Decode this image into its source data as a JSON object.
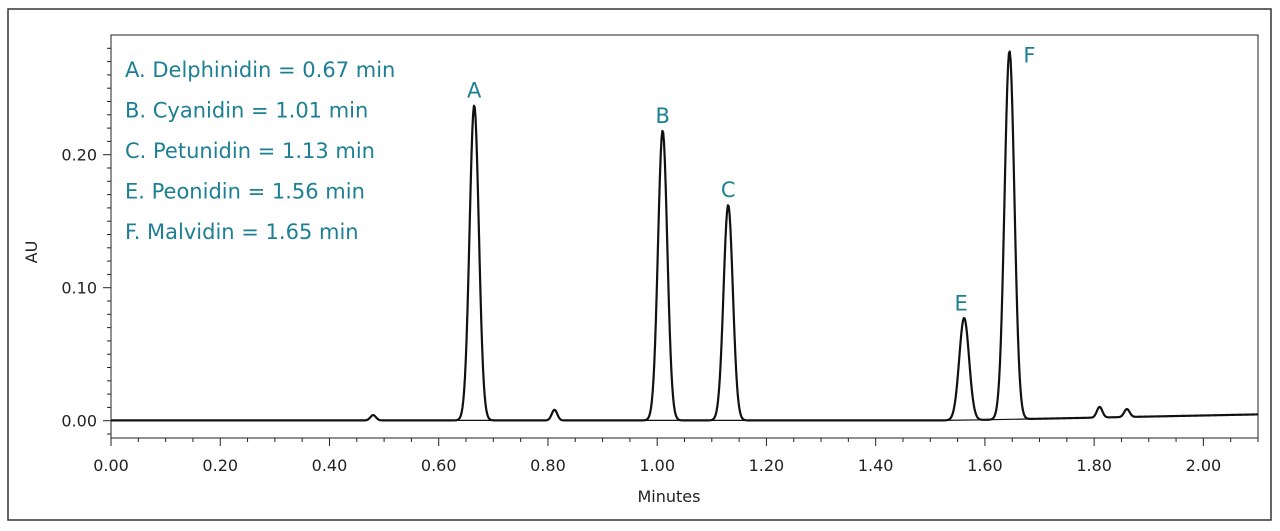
{
  "chart_data": {
    "type": "line",
    "title": "",
    "xlabel": "Minutes",
    "ylabel": "AU",
    "xlim": [
      0.0,
      2.1
    ],
    "ylim": [
      -0.013,
      0.29
    ],
    "x_ticks": [
      "0.00",
      "0.20",
      "0.40",
      "0.60",
      "0.80",
      "1.00",
      "1.20",
      "1.40",
      "1.60",
      "1.80",
      "2.00"
    ],
    "y_ticks": [
      "0.00",
      "0.10",
      "0.20"
    ],
    "grid": false,
    "legend_position": "top-left",
    "colors": {
      "trace": "#111111",
      "annotation": "#1d7f93"
    },
    "legend": [
      "A. Delphinidin = 0.67 min",
      "B. Cyanidin = 1.01 min",
      "C. Petunidin = 1.13 min",
      "E. Peonidin = 1.56 min",
      "F. Malvidin = 1.65 min"
    ],
    "peaks": [
      {
        "label": "A",
        "x": 0.665,
        "y": 0.237
      },
      {
        "label": "B",
        "x": 1.01,
        "y": 0.218
      },
      {
        "label": "C",
        "x": 1.13,
        "y": 0.162
      },
      {
        "label": "E",
        "x": 1.562,
        "y": 0.077
      },
      {
        "label": "F",
        "x": 1.645,
        "y": 0.277
      }
    ],
    "minor_peaks": [
      {
        "x": 0.48,
        "y": 0.004
      },
      {
        "x": 0.812,
        "y": 0.008
      },
      {
        "x": 1.81,
        "y": 0.008
      },
      {
        "x": 1.86,
        "y": 0.006
      }
    ]
  }
}
